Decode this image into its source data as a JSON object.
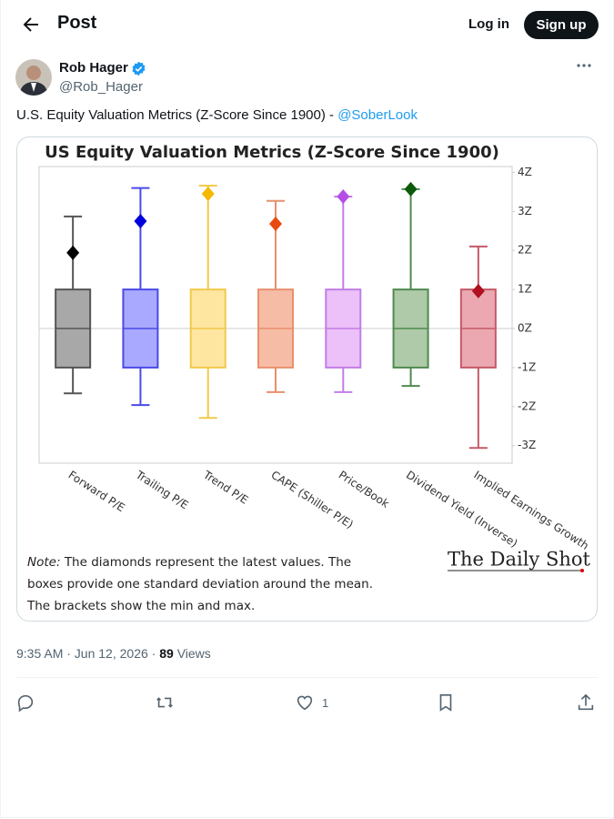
{
  "header": {
    "title": "Post",
    "login": "Log in",
    "signup": "Sign up"
  },
  "tweet": {
    "author": "Rob Hager",
    "handle": "@Rob_Hager",
    "text": "U.S. Equity Valuation Metrics (Z-Score Since 1900) - ",
    "mention": "@SoberLook",
    "timestamp": "9:35 AM · Jun 12, 2026 · ",
    "views": "89",
    "views_label": "Views",
    "likes": "1"
  },
  "chart_data": {
    "type": "box",
    "title": "US Equity Valuation Metrics (Z-Score Since 1900)",
    "categories": [
      "Forward P/E",
      "Trailing P/E",
      "Trend P/E",
      "CAPE (Shiller P/E)",
      "Price/Book",
      "Dividend Yield (Inverse)",
      "Implied Earnings Growth"
    ],
    "min": [
      -1.66,
      -1.96,
      -2.29,
      -1.63,
      -1.63,
      -1.47,
      -3.06
    ],
    "q1": [
      -1.0,
      -1.0,
      -1.0,
      -1.0,
      -1.0,
      -1.0,
      -1.0
    ],
    "median": [
      0,
      0,
      0,
      0,
      0,
      0,
      0
    ],
    "q3": [
      1.0,
      1.0,
      1.0,
      1.0,
      1.0,
      1.0,
      1.0
    ],
    "max": [
      2.87,
      3.6,
      3.66,
      3.27,
      3.38,
      3.57,
      2.1
    ],
    "latest": [
      1.94,
      2.75,
      3.45,
      2.68,
      3.38,
      3.57,
      0.96
    ],
    "box_colors": [
      "#a8a8a8",
      "#a9a9ff",
      "#ffe6a0",
      "#f7bca6",
      "#ecc0f8",
      "#aecaa8",
      "#eca8b0"
    ],
    "line_colors": [
      "#555555",
      "#4a4ae8",
      "#f2c94c",
      "#e8906e",
      "#c27de6",
      "#4f8a4f",
      "#c45a68"
    ],
    "marker_colors": [
      "#000000",
      "#0000dd",
      "#f5b800",
      "#e84a10",
      "#b44ee6",
      "#0a5a0a",
      "#b01020"
    ],
    "ylim": [
      -3.45,
      4.15
    ],
    "yticks": [
      {
        "value": 4,
        "label": "4Z"
      },
      {
        "value": 3,
        "label": "3Z"
      },
      {
        "value": 2,
        "label": "2Z"
      },
      {
        "value": 1,
        "label": "1Z"
      },
      {
        "value": 0,
        "label": "0Z"
      },
      {
        "value": -1,
        "label": "-1Z"
      },
      {
        "value": -2,
        "label": "-2Z"
      },
      {
        "value": -3,
        "label": "-3Z"
      }
    ],
    "zero_line": true,
    "note_label": "Note:",
    "note_lines": [
      "The diamonds represent the latest values. The",
      "boxes provide one standard deviation around the mean.",
      "The brackets show the min and max."
    ],
    "source": "The Daily Shot"
  }
}
